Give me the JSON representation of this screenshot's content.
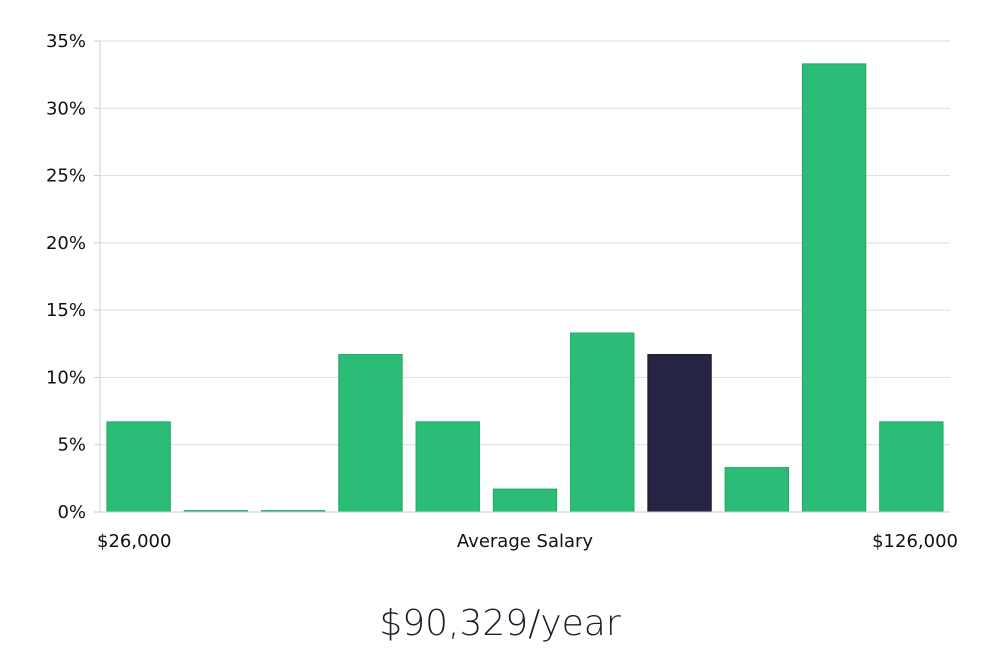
{
  "chart_data": {
    "type": "bar",
    "title": "",
    "xlabel": "Average Salary",
    "x_min_label": "$26,000",
    "x_max_label": "$126,000",
    "ylabel": "",
    "ylim": [
      0,
      35
    ],
    "y_ticks": [
      0,
      5,
      10,
      15,
      20,
      25,
      30,
      35
    ],
    "y_tick_labels": [
      "0%",
      "5%",
      "10%",
      "15%",
      "20%",
      "25%",
      "30%",
      "35%"
    ],
    "grid": true,
    "values": [
      6.7,
      0.1,
      0.1,
      11.7,
      6.7,
      1.7,
      13.3,
      11.7,
      3.3,
      33.3,
      6.7
    ],
    "highlight_index": 7,
    "colors": {
      "bar": "#2bbd77",
      "bar_border": "#1fa765",
      "highlight": "#252443",
      "highlight_border": "#15142e",
      "grid": "#dedede",
      "axis": "#cfcfcf"
    }
  },
  "summary": {
    "average_salary": "$90,329/year"
  }
}
